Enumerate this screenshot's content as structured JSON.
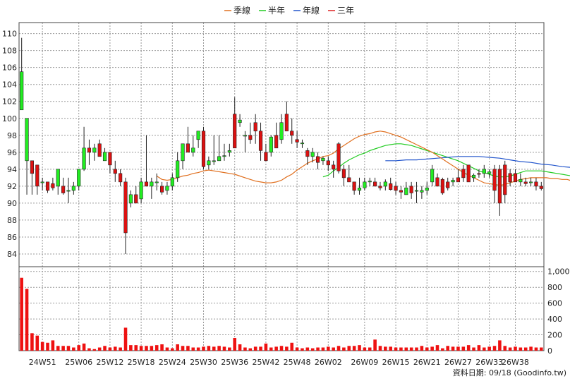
{
  "chart_data": {
    "type": "candlestick",
    "legend": [
      {
        "label": "季線",
        "color": "#e07020"
      },
      {
        "label": "半年",
        "color": "#22cc22"
      },
      {
        "label": "年線",
        "color": "#2255cc"
      },
      {
        "label": "三年",
        "color": "#dd2222"
      }
    ],
    "price_axis": {
      "ticks": [
        84,
        86,
        88,
        90,
        92,
        94,
        96,
        98,
        100,
        102,
        104,
        106,
        108,
        110
      ],
      "ylim": [
        82.5,
        111.3
      ]
    },
    "volume_axis": {
      "ticks": [
        "0",
        "200",
        "400",
        "600",
        "800",
        "1,000"
      ],
      "ylim": [
        0,
        1060
      ]
    },
    "x_tick_labels": [
      "24W51",
      "25W06",
      "25W12",
      "25W18",
      "25W24",
      "25W30",
      "25W36",
      "25W42",
      "25W48",
      "26W02",
      "26W09",
      "26W15",
      "26W21",
      "26W27",
      "26W33",
      "26W38"
    ],
    "x_tick_index": [
      4,
      11,
      17,
      23,
      29,
      35,
      41,
      47,
      53,
      59,
      66,
      72,
      78,
      84,
      90,
      95
    ],
    "footer": "資料日期: 09/18  (Goodinfo.tw)",
    "candles": [
      [
        101.0,
        109.5,
        101.0,
        105.5
      ],
      [
        95.0,
        100.0,
        91.0,
        100.0
      ],
      [
        95.0,
        95.0,
        91.0,
        93.5
      ],
      [
        94.5,
        94.5,
        91.0,
        92.0
      ],
      [
        92.5,
        93.0,
        91.5,
        92.5
      ],
      [
        92.5,
        92.5,
        91.2,
        91.5
      ],
      [
        92.3,
        93.0,
        91.5,
        91.8
      ],
      [
        92.0,
        94.0,
        91.0,
        94.0
      ],
      [
        92.0,
        93.0,
        91.0,
        91.2
      ],
      [
        91.5,
        93.0,
        90.0,
        91.5
      ],
      [
        91.5,
        92.5,
        91.0,
        92.0
      ],
      [
        92.0,
        94.0,
        91.5,
        94.0
      ],
      [
        94.0,
        99.0,
        93.8,
        96.5
      ],
      [
        96.5,
        97.5,
        94.5,
        96.0
      ],
      [
        96.0,
        97.0,
        95.0,
        96.5
      ],
      [
        97.0,
        97.5,
        95.5,
        95.5
      ],
      [
        95.0,
        96.5,
        95.0,
        96.0
      ],
      [
        96.0,
        96.0,
        93.5,
        94.5
      ],
      [
        94.0,
        95.0,
        92.5,
        93.5
      ],
      [
        93.5,
        94.0,
        92.0,
        92.5
      ],
      [
        92.5,
        93.0,
        84.0,
        86.5
      ],
      [
        90.0,
        91.5,
        89.5,
        91.0
      ],
      [
        91.0,
        92.0,
        90.0,
        90.0
      ],
      [
        90.5,
        93.0,
        90.0,
        92.5
      ],
      [
        92.5,
        98.0,
        92.0,
        92.0
      ],
      [
        92.0,
        93.0,
        90.5,
        92.5
      ],
      [
        92.5,
        93.5,
        91.5,
        92.5
      ],
      [
        92.0,
        92.5,
        91.0,
        91.3
      ],
      [
        91.5,
        92.5,
        91.0,
        92.0
      ],
      [
        92.0,
        93.5,
        91.5,
        93.0
      ],
      [
        93.0,
        96.0,
        92.5,
        95.0
      ],
      [
        95.0,
        97.0,
        94.0,
        97.0
      ],
      [
        97.0,
        99.0,
        96.0,
        96.0
      ],
      [
        96.0,
        98.0,
        95.5,
        96.5
      ],
      [
        97.5,
        98.5,
        96.5,
        98.5
      ],
      [
        98.5,
        99.0,
        94.0,
        94.3
      ],
      [
        94.5,
        95.5,
        94.0,
        95.0
      ],
      [
        95.0,
        98.0,
        94.5,
        95.0
      ],
      [
        95.0,
        98.0,
        95.0,
        95.5
      ],
      [
        95.5,
        97.0,
        95.0,
        95.6
      ],
      [
        96.0,
        97.0,
        95.5,
        96.2
      ],
      [
        100.5,
        102.5,
        96.5,
        96.5
      ],
      [
        99.5,
        100.5,
        99.0,
        99.8
      ],
      [
        98.0,
        98.5,
        96.0,
        98.0
      ],
      [
        98.0,
        99.5,
        97.0,
        97.5
      ],
      [
        99.5,
        100.5,
        97.0,
        98.5
      ],
      [
        98.5,
        99.5,
        95.0,
        96.2
      ],
      [
        96.0,
        97.0,
        95.0,
        95.0
      ],
      [
        96.0,
        98.0,
        95.5,
        97.8
      ],
      [
        98.0,
        99.5,
        96.5,
        96.5
      ],
      [
        97.5,
        100.5,
        97.0,
        99.5
      ],
      [
        100.5,
        102.0,
        98.5,
        98.5
      ],
      [
        98.5,
        100.0,
        97.0,
        98.0
      ],
      [
        97.5,
        98.5,
        96.5,
        97.2
      ],
      [
        97.0,
        97.5,
        96.5,
        97.1
      ],
      [
        96.2,
        96.5,
        94.5,
        95.5
      ],
      [
        95.5,
        96.5,
        94.8,
        96.0
      ],
      [
        95.5,
        96.0,
        94.0,
        94.8
      ],
      [
        95.0,
        95.5,
        94.5,
        95.3
      ],
      [
        95.0,
        95.5,
        93.8,
        94.5
      ],
      [
        94.5,
        95.0,
        93.0,
        94.0
      ],
      [
        97.0,
        97.2,
        93.5,
        93.8
      ],
      [
        94.0,
        94.5,
        92.0,
        93.0
      ],
      [
        93.0,
        94.5,
        92.5,
        92.5
      ],
      [
        92.5,
        92.5,
        91.0,
        91.5
      ],
      [
        91.5,
        93.0,
        91.0,
        91.8
      ],
      [
        91.8,
        93.0,
        91.5,
        92.5
      ],
      [
        92.5,
        93.0,
        92.0,
        92.6
      ],
      [
        92.5,
        93.0,
        92.0,
        92.0
      ],
      [
        92.0,
        92.5,
        91.5,
        91.8
      ],
      [
        92.0,
        92.8,
        91.5,
        92.5
      ],
      [
        92.3,
        93.0,
        91.5,
        91.6
      ],
      [
        92.0,
        92.5,
        91.0,
        91.5
      ],
      [
        91.5,
        92.0,
        90.5,
        91.3
      ],
      [
        91.0,
        92.5,
        91.0,
        91.8
      ],
      [
        92.0,
        92.5,
        90.5,
        91.2
      ],
      [
        91.5,
        92.5,
        90.0,
        91.5
      ],
      [
        91.3,
        92.0,
        90.5,
        91.5
      ],
      [
        91.5,
        92.5,
        91.0,
        91.8
      ],
      [
        92.5,
        94.5,
        92.0,
        94.0
      ],
      [
        93.0,
        93.5,
        92.0,
        92.0
      ],
      [
        92.8,
        93.0,
        91.0,
        91.2
      ],
      [
        92.5,
        93.0,
        91.5,
        91.8
      ],
      [
        92.5,
        93.0,
        92.0,
        92.7
      ],
      [
        93.0,
        94.0,
        92.5,
        92.5
      ],
      [
        94.0,
        94.5,
        92.5,
        93.0
      ],
      [
        94.5,
        94.5,
        92.5,
        92.5
      ],
      [
        93.0,
        93.5,
        92.5,
        93.3
      ],
      [
        93.5,
        94.0,
        93.0,
        93.4
      ],
      [
        93.5,
        94.5,
        93.0,
        94.0
      ],
      [
        93.5,
        94.0,
        93.0,
        93.7
      ],
      [
        94.0,
        94.5,
        90.0,
        91.5
      ],
      [
        94.0,
        94.5,
        88.5,
        90.0
      ],
      [
        94.5,
        95.0,
        90.0,
        91.0
      ],
      [
        93.5,
        94.0,
        92.0,
        92.5
      ],
      [
        93.5,
        94.0,
        92.5,
        92.5
      ],
      [
        92.5,
        93.5,
        92.0,
        92.8
      ],
      [
        92.5,
        93.0,
        92.0,
        92.3
      ],
      [
        92.5,
        93.0,
        92.0,
        92.5
      ],
      [
        92.5,
        93.0,
        91.5,
        92.0
      ],
      [
        92.0,
        92.5,
        91.5,
        91.7
      ]
    ],
    "volume": [
      920,
      780,
      220,
      190,
      110,
      100,
      130,
      60,
      60,
      60,
      40,
      70,
      90,
      30,
      20,
      40,
      60,
      40,
      50,
      40,
      290,
      70,
      70,
      60,
      60,
      60,
      70,
      80,
      40,
      30,
      80,
      60,
      60,
      40,
      40,
      50,
      60,
      50,
      60,
      50,
      40,
      160,
      80,
      40,
      30,
      50,
      50,
      90,
      40,
      50,
      60,
      50,
      100,
      40,
      30,
      40,
      30,
      40,
      40,
      50,
      40,
      60,
      40,
      60,
      60,
      70,
      40,
      40,
      140,
      60,
      50,
      50,
      40,
      40,
      40,
      40,
      40,
      60,
      40,
      50,
      70,
      30,
      60,
      50,
      50,
      50,
      70,
      40,
      70,
      40,
      50,
      60,
      130,
      60,
      40,
      50,
      40,
      40,
      50,
      40,
      40
    ],
    "ma_quarter": [
      [
        26,
        93.2
      ],
      [
        27,
        92.8
      ],
      [
        28,
        92.7
      ],
      [
        29,
        92.8
      ],
      [
        30,
        93.0
      ],
      [
        31,
        93.2
      ],
      [
        32,
        93.3
      ],
      [
        33,
        93.5
      ],
      [
        34,
        93.6
      ],
      [
        35,
        93.8
      ],
      [
        36,
        93.9
      ],
      [
        37,
        93.8
      ],
      [
        38,
        93.7
      ],
      [
        39,
        93.6
      ],
      [
        40,
        93.5
      ],
      [
        41,
        93.4
      ],
      [
        42,
        93.2
      ],
      [
        43,
        93.0
      ],
      [
        44,
        92.8
      ],
      [
        45,
        92.6
      ],
      [
        46,
        92.5
      ],
      [
        47,
        92.4
      ],
      [
        48,
        92.4
      ],
      [
        49,
        92.5
      ],
      [
        50,
        92.7
      ],
      [
        51,
        93.1
      ],
      [
        52,
        93.4
      ],
      [
        53,
        93.9
      ],
      [
        54,
        94.3
      ],
      [
        55,
        94.7
      ],
      [
        56,
        95.0
      ],
      [
        57,
        95.2
      ],
      [
        58,
        95.5
      ],
      [
        59,
        95.6
      ],
      [
        60,
        95.9
      ],
      [
        61,
        96.4
      ],
      [
        62,
        96.8
      ],
      [
        63,
        97.2
      ],
      [
        64,
        97.6
      ],
      [
        65,
        97.9
      ],
      [
        66,
        98.1
      ],
      [
        67,
        98.2
      ],
      [
        68,
        98.4
      ],
      [
        69,
        98.5
      ],
      [
        70,
        98.4
      ],
      [
        71,
        98.2
      ],
      [
        72,
        98.0
      ],
      [
        73,
        97.8
      ],
      [
        74,
        97.5
      ],
      [
        75,
        97.2
      ],
      [
        76,
        96.9
      ],
      [
        77,
        96.6
      ],
      [
        78,
        96.3
      ],
      [
        79,
        96.0
      ],
      [
        80,
        95.6
      ],
      [
        81,
        95.2
      ],
      [
        82,
        94.8
      ],
      [
        83,
        94.4
      ],
      [
        84,
        94.0
      ],
      [
        85,
        93.6
      ],
      [
        86,
        93.3
      ],
      [
        87,
        93.0
      ],
      [
        88,
        92.7
      ],
      [
        89,
        92.4
      ],
      [
        90,
        92.3
      ],
      [
        91,
        92.2
      ],
      [
        92,
        92.1
      ],
      [
        93,
        92.2
      ],
      [
        94,
        92.4
      ],
      [
        95,
        92.6
      ],
      [
        96,
        92.8
      ],
      [
        97,
        92.9
      ],
      [
        98,
        93.0
      ],
      [
        99,
        93.0
      ],
      [
        100,
        93.0
      ],
      [
        101,
        93.0
      ],
      [
        102,
        92.9
      ],
      [
        103,
        92.9
      ],
      [
        104,
        92.8
      ],
      [
        105,
        92.8
      ],
      [
        106,
        92.6
      ]
    ],
    "ma_half": [
      [
        58,
        93.1
      ],
      [
        59,
        93.3
      ],
      [
        60,
        93.8
      ],
      [
        61,
        94.2
      ],
      [
        62,
        94.7
      ],
      [
        63,
        95.1
      ],
      [
        64,
        95.4
      ],
      [
        65,
        95.7
      ],
      [
        66,
        95.9
      ],
      [
        67,
        96.2
      ],
      [
        68,
        96.4
      ],
      [
        69,
        96.6
      ],
      [
        70,
        96.8
      ],
      [
        71,
        96.9
      ],
      [
        72,
        97.0
      ],
      [
        73,
        97.0
      ],
      [
        74,
        96.9
      ],
      [
        75,
        96.8
      ],
      [
        76,
        96.6
      ],
      [
        77,
        96.4
      ],
      [
        78,
        96.2
      ],
      [
        79,
        96.0
      ],
      [
        80,
        95.8
      ],
      [
        81,
        95.6
      ],
      [
        82,
        95.4
      ],
      [
        83,
        95.2
      ],
      [
        84,
        95.0
      ],
      [
        85,
        94.7
      ],
      [
        86,
        94.4
      ],
      [
        87,
        94.1
      ],
      [
        88,
        93.8
      ],
      [
        89,
        93.6
      ],
      [
        90,
        93.4
      ],
      [
        91,
        93.2
      ],
      [
        92,
        93.1
      ],
      [
        93,
        93.1
      ],
      [
        94,
        93.2
      ],
      [
        95,
        93.4
      ],
      [
        96,
        93.6
      ],
      [
        97,
        93.8
      ],
      [
        98,
        93.8
      ],
      [
        99,
        93.8
      ],
      [
        100,
        93.8
      ],
      [
        101,
        93.7
      ],
      [
        102,
        93.6
      ],
      [
        103,
        93.5
      ],
      [
        104,
        93.4
      ],
      [
        105,
        93.3
      ],
      [
        106,
        93.2
      ]
    ],
    "ma_year": [
      [
        70,
        95.0
      ],
      [
        72,
        95.0
      ],
      [
        74,
        95.1
      ],
      [
        76,
        95.1
      ],
      [
        78,
        95.2
      ],
      [
        80,
        95.3
      ],
      [
        82,
        95.4
      ],
      [
        84,
        95.5
      ],
      [
        86,
        95.5
      ],
      [
        88,
        95.5
      ],
      [
        90,
        95.4
      ],
      [
        92,
        95.3
      ],
      [
        94,
        95.1
      ],
      [
        96,
        94.9
      ],
      [
        98,
        94.8
      ],
      [
        100,
        94.6
      ],
      [
        102,
        94.5
      ],
      [
        104,
        94.3
      ],
      [
        106,
        94.2
      ]
    ]
  }
}
